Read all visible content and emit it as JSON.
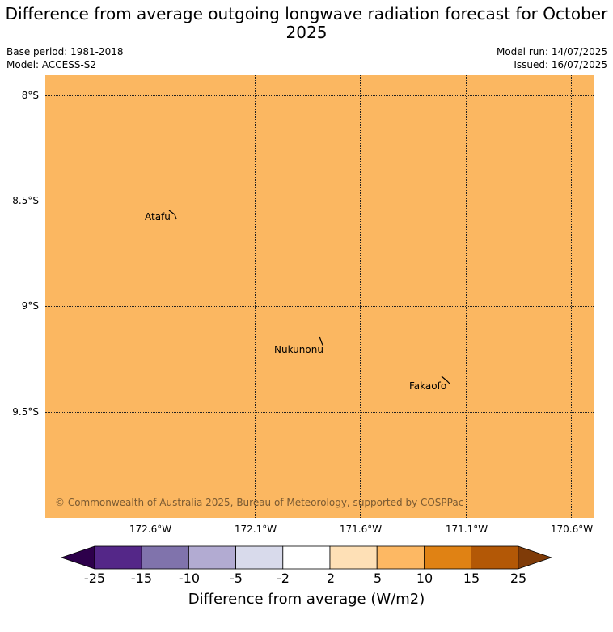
{
  "title": "Difference from average outgoing longwave radiation forecast for October 2025",
  "base_period": "Base period: 1981-2018",
  "model": "Model: ACCESS-S2",
  "model_run": "Model run: 14/07/2025",
  "issued": "Issued: 16/07/2025",
  "map": {
    "fill_color": "#fbb761",
    "lat_labels": [
      "8°S",
      "8.5°S",
      "9°S",
      "9.5°S"
    ],
    "lon_labels": [
      "172.6°W",
      "172.1°W",
      "171.6°W",
      "171.1°W",
      "170.6°W"
    ],
    "places": [
      {
        "name": "Atafu",
        "lat": -8.57,
        "lon": -172.49
      },
      {
        "name": "Nukunonu",
        "lat": -9.17,
        "lon": -171.82
      },
      {
        "name": "Fakaofo",
        "lat": -9.37,
        "lon": -171.22
      }
    ],
    "copyright": "© Commonwealth of Australia 2025, Bureau of Meteorology, supported by COSPPac"
  },
  "colorbar": {
    "label": "Difference from average (W/m2)",
    "ticks": [
      "-25",
      "-15",
      "-10",
      "-5",
      "-2",
      "2",
      "5",
      "10",
      "15",
      "25"
    ],
    "colors": [
      "#542788",
      "#8073ac",
      "#b2abd2",
      "#d8daeb",
      "#ffffff",
      "#fee0b6",
      "#fdb863",
      "#e08214",
      "#b35806"
    ],
    "under_color": "#2d004b",
    "over_color": "#7f3b08"
  }
}
